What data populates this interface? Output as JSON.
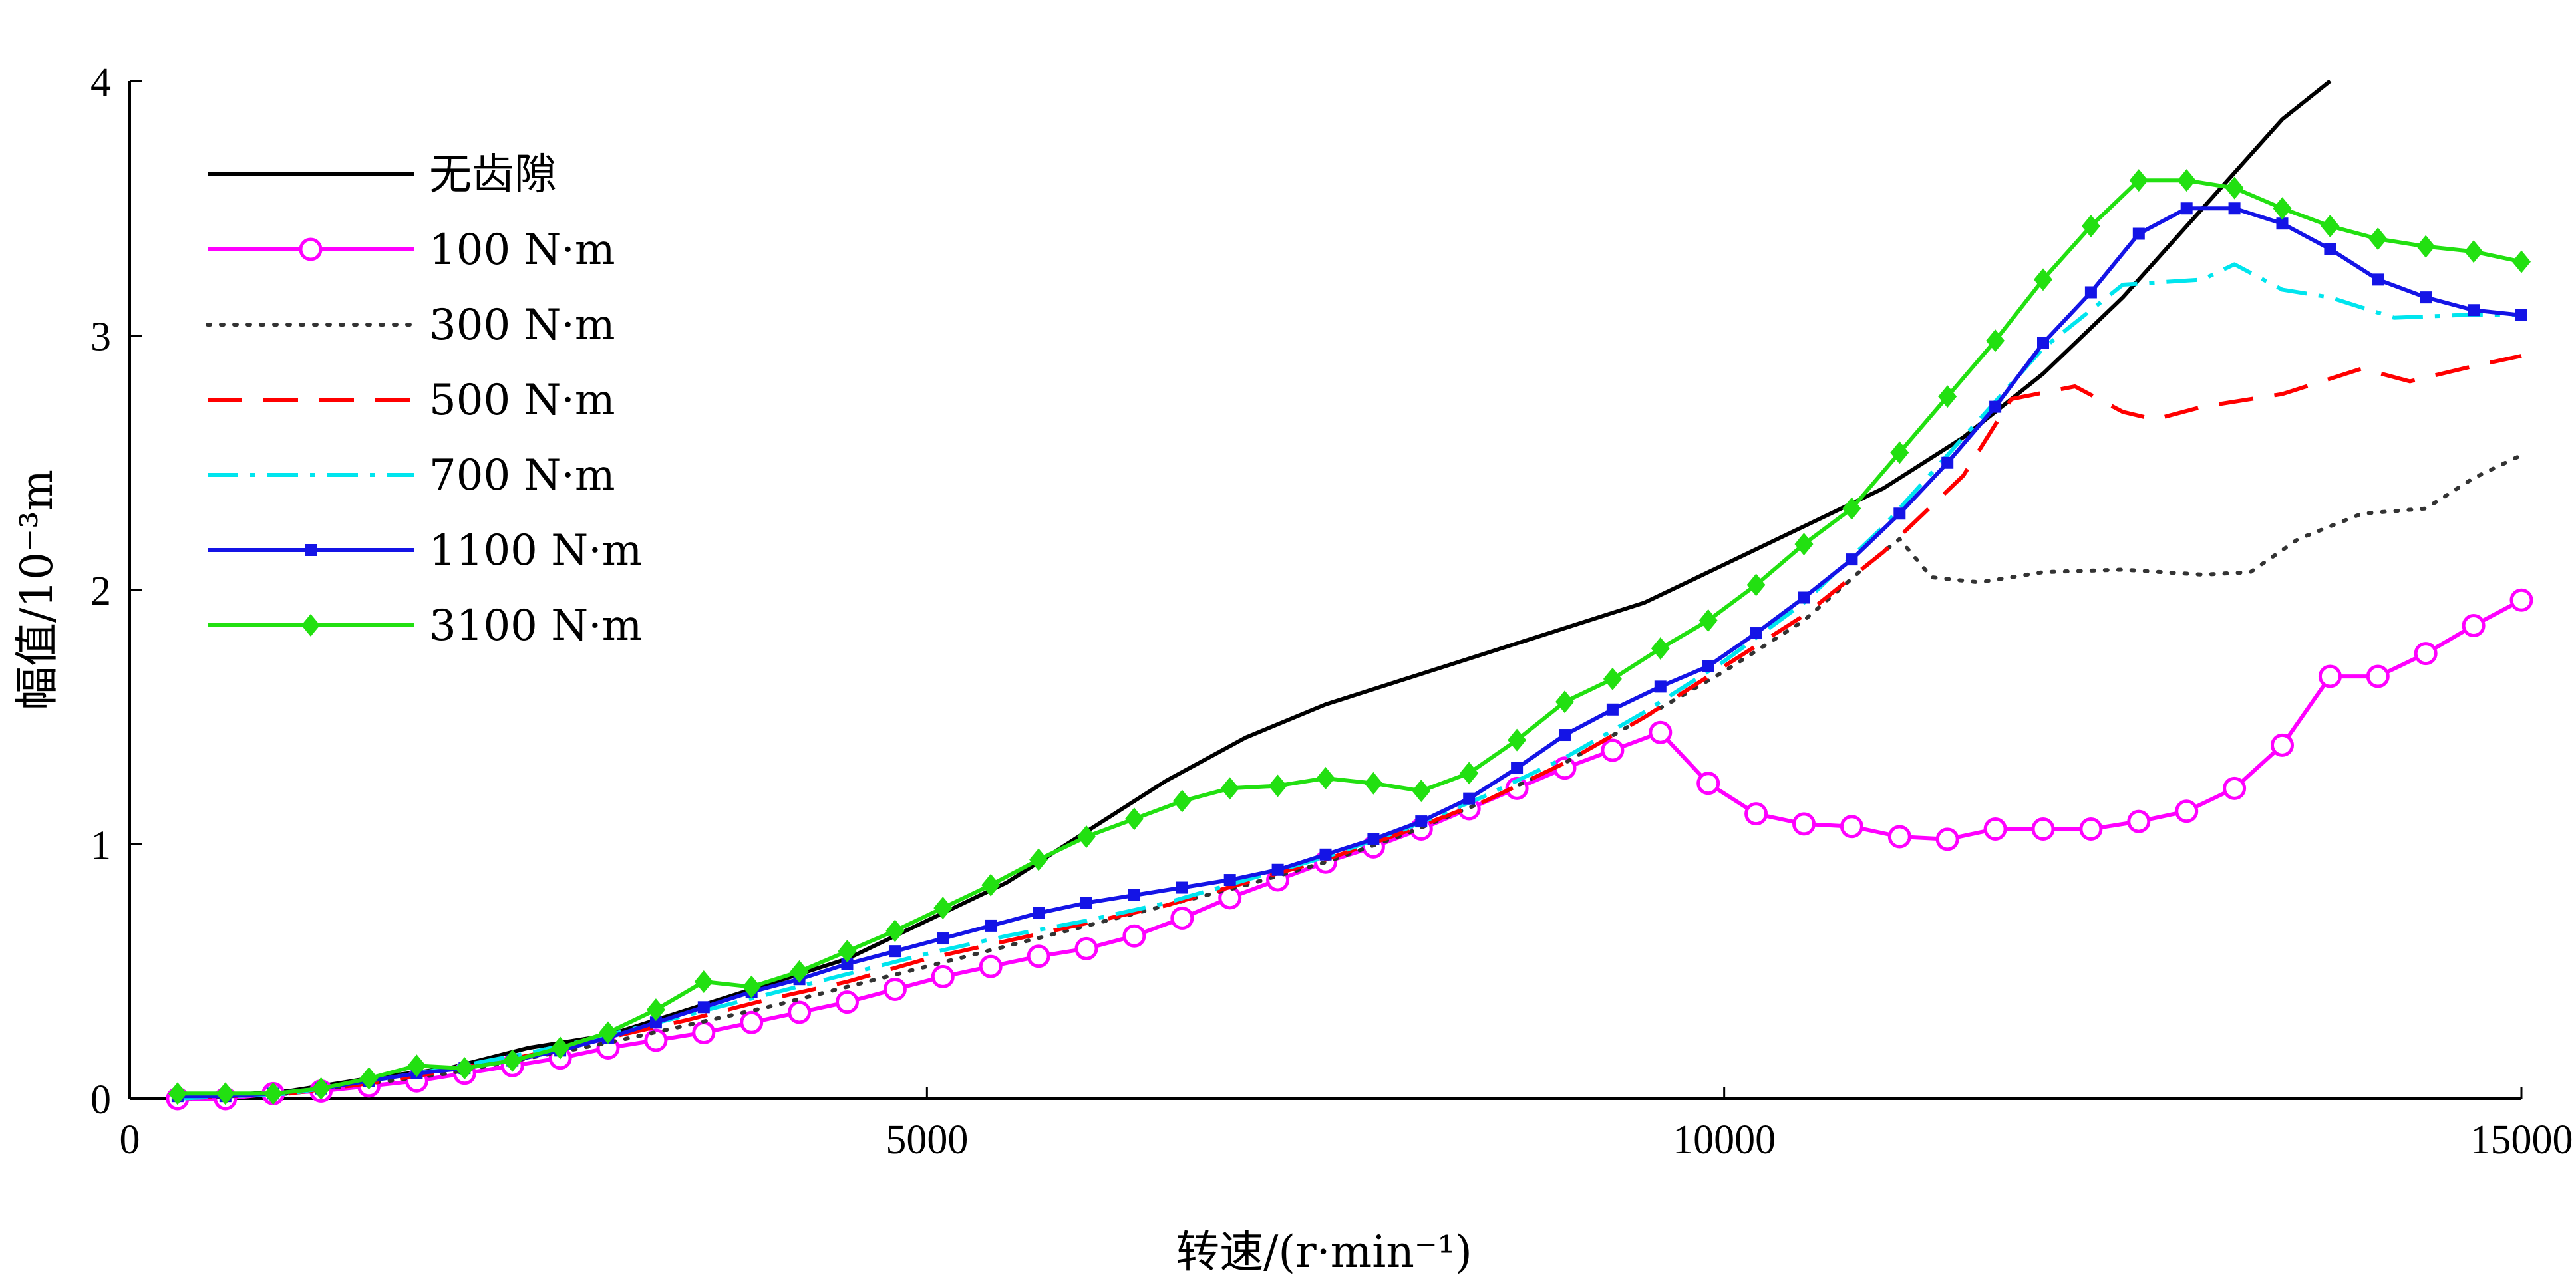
{
  "chart_data": {
    "type": "line",
    "xlabel": "转速/(r·min⁻¹)",
    "ylabel": "幅值/10⁻³m",
    "xlim": [
      0,
      15000
    ],
    "ylim": [
      0,
      4
    ],
    "xticks": [
      {
        "value": 0,
        "label": "0"
      },
      {
        "value": 5000,
        "label": "5000"
      },
      {
        "value": 10000,
        "label": "10000"
      },
      {
        "value": 15000,
        "label": "15000"
      }
    ],
    "yticks": [
      {
        "value": 0,
        "label": "0"
      },
      {
        "value": 1,
        "label": "1"
      },
      {
        "value": 2,
        "label": "2"
      },
      {
        "value": 3,
        "label": "3"
      },
      {
        "value": 4,
        "label": "4"
      }
    ],
    "grid": false,
    "legend_position": "top-left",
    "series": [
      {
        "name": "无齿隙",
        "color": "#000000",
        "dash": "solid",
        "marker": "none",
        "points": [
          [
            300,
            0
          ],
          [
            1000,
            0.03
          ],
          [
            1500,
            0.08
          ],
          [
            2000,
            0.12
          ],
          [
            2500,
            0.2
          ],
          [
            3000,
            0.25
          ],
          [
            3500,
            0.35
          ],
          [
            4000,
            0.45
          ],
          [
            4500,
            0.55
          ],
          [
            5000,
            0.7
          ],
          [
            5500,
            0.85
          ],
          [
            6000,
            1.05
          ],
          [
            6500,
            1.25
          ],
          [
            7000,
            1.42
          ],
          [
            7500,
            1.55
          ],
          [
            8000,
            1.65
          ],
          [
            8500,
            1.75
          ],
          [
            9000,
            1.85
          ],
          [
            9500,
            1.95
          ],
          [
            10000,
            2.1
          ],
          [
            10500,
            2.25
          ],
          [
            11000,
            2.4
          ],
          [
            11500,
            2.6
          ],
          [
            12000,
            2.85
          ],
          [
            12500,
            3.15
          ],
          [
            13000,
            3.5
          ],
          [
            13500,
            3.85
          ],
          [
            13800,
            4.0
          ]
        ]
      },
      {
        "name": "100 N·m",
        "color": "#ff00ff",
        "dash": "solid",
        "marker": "circle-open",
        "points": [
          [
            300,
            0
          ],
          [
            600,
            0
          ],
          [
            900,
            0.02
          ],
          [
            1200,
            0.03
          ],
          [
            1500,
            0.05
          ],
          [
            1800,
            0.07
          ],
          [
            2100,
            0.1
          ],
          [
            2400,
            0.13
          ],
          [
            2700,
            0.16
          ],
          [
            3000,
            0.2
          ],
          [
            3300,
            0.23
          ],
          [
            3600,
            0.26
          ],
          [
            3900,
            0.3
          ],
          [
            4200,
            0.34
          ],
          [
            4500,
            0.38
          ],
          [
            4800,
            0.43
          ],
          [
            5100,
            0.48
          ],
          [
            5400,
            0.52
          ],
          [
            5700,
            0.56
          ],
          [
            6000,
            0.59
          ],
          [
            6300,
            0.64
          ],
          [
            6600,
            0.71
          ],
          [
            6900,
            0.79
          ],
          [
            7200,
            0.86
          ],
          [
            7500,
            0.93
          ],
          [
            7800,
            0.99
          ],
          [
            8100,
            1.06
          ],
          [
            8400,
            1.14
          ],
          [
            8700,
            1.22
          ],
          [
            9000,
            1.3
          ],
          [
            9300,
            1.37
          ],
          [
            9600,
            1.44
          ],
          [
            9900,
            1.24
          ],
          [
            10200,
            1.12
          ],
          [
            10500,
            1.08
          ],
          [
            10800,
            1.07
          ],
          [
            11100,
            1.03
          ],
          [
            11400,
            1.02
          ],
          [
            11700,
            1.06
          ],
          [
            12000,
            1.06
          ],
          [
            12300,
            1.06
          ],
          [
            12600,
            1.09
          ],
          [
            12900,
            1.13
          ],
          [
            13200,
            1.22
          ],
          [
            13500,
            1.39
          ],
          [
            13800,
            1.66
          ],
          [
            14100,
            1.66
          ],
          [
            14400,
            1.75
          ],
          [
            14700,
            1.86
          ],
          [
            15000,
            1.96
          ]
        ]
      },
      {
        "name": "300 N·m",
        "color": "#333333",
        "dash": "dotted",
        "marker": "none",
        "points": [
          [
            300,
            0
          ],
          [
            1000,
            0.02
          ],
          [
            1500,
            0.06
          ],
          [
            2000,
            0.1
          ],
          [
            2500,
            0.16
          ],
          [
            3000,
            0.22
          ],
          [
            3500,
            0.29
          ],
          [
            4000,
            0.36
          ],
          [
            4500,
            0.44
          ],
          [
            5000,
            0.52
          ],
          [
            5500,
            0.6
          ],
          [
            6000,
            0.68
          ],
          [
            6500,
            0.76
          ],
          [
            7000,
            0.84
          ],
          [
            7500,
            0.93
          ],
          [
            8000,
            1.04
          ],
          [
            8500,
            1.17
          ],
          [
            9000,
            1.32
          ],
          [
            9500,
            1.5
          ],
          [
            10000,
            1.68
          ],
          [
            10500,
            1.88
          ],
          [
            10900,
            2.1
          ],
          [
            11100,
            2.2
          ],
          [
            11300,
            2.05
          ],
          [
            11600,
            2.03
          ],
          [
            12000,
            2.07
          ],
          [
            12500,
            2.08
          ],
          [
            13000,
            2.06
          ],
          [
            13300,
            2.07
          ],
          [
            13600,
            2.2
          ],
          [
            14000,
            2.3
          ],
          [
            14400,
            2.32
          ],
          [
            14700,
            2.44
          ],
          [
            15000,
            2.53
          ]
        ]
      },
      {
        "name": "500 N·m",
        "color": "#ff0000",
        "dash": "dashed",
        "marker": "none",
        "points": [
          [
            300,
            0
          ],
          [
            1000,
            0.02
          ],
          [
            1500,
            0.06
          ],
          [
            2000,
            0.11
          ],
          [
            2500,
            0.17
          ],
          [
            3000,
            0.24
          ],
          [
            3500,
            0.31
          ],
          [
            4000,
            0.39
          ],
          [
            4500,
            0.46
          ],
          [
            5000,
            0.55
          ],
          [
            5500,
            0.62
          ],
          [
            6000,
            0.69
          ],
          [
            6500,
            0.76
          ],
          [
            7000,
            0.85
          ],
          [
            7500,
            0.94
          ],
          [
            8000,
            1.05
          ],
          [
            8500,
            1.17
          ],
          [
            9000,
            1.32
          ],
          [
            9500,
            1.5
          ],
          [
            10000,
            1.7
          ],
          [
            10500,
            1.9
          ],
          [
            11000,
            2.15
          ],
          [
            11500,
            2.45
          ],
          [
            11800,
            2.75
          ],
          [
            12200,
            2.8
          ],
          [
            12500,
            2.7
          ],
          [
            12700,
            2.67
          ],
          [
            13000,
            2.72
          ],
          [
            13500,
            2.77
          ],
          [
            14000,
            2.87
          ],
          [
            14300,
            2.82
          ],
          [
            14700,
            2.88
          ],
          [
            15000,
            2.92
          ]
        ]
      },
      {
        "name": "700 N·m",
        "color": "#00e5ee",
        "dash": "dashdot",
        "marker": "none",
        "points": [
          [
            300,
            0
          ],
          [
            1000,
            0.02
          ],
          [
            1500,
            0.07
          ],
          [
            2000,
            0.12
          ],
          [
            2500,
            0.18
          ],
          [
            3000,
            0.25
          ],
          [
            3500,
            0.33
          ],
          [
            4000,
            0.41
          ],
          [
            4500,
            0.49
          ],
          [
            5000,
            0.57
          ],
          [
            5500,
            0.64
          ],
          [
            6000,
            0.7
          ],
          [
            6500,
            0.77
          ],
          [
            7000,
            0.86
          ],
          [
            7500,
            0.95
          ],
          [
            8000,
            1.06
          ],
          [
            8500,
            1.19
          ],
          [
            9000,
            1.34
          ],
          [
            9500,
            1.52
          ],
          [
            10000,
            1.72
          ],
          [
            10500,
            1.95
          ],
          [
            11000,
            2.25
          ],
          [
            11500,
            2.6
          ],
          [
            12000,
            2.95
          ],
          [
            12500,
            3.2
          ],
          [
            13000,
            3.22
          ],
          [
            13200,
            3.28
          ],
          [
            13500,
            3.18
          ],
          [
            13800,
            3.15
          ],
          [
            14200,
            3.07
          ],
          [
            14600,
            3.08
          ],
          [
            15000,
            3.08
          ]
        ]
      },
      {
        "name": "1100 N·m",
        "color": "#1414e6",
        "dash": "solid",
        "marker": "square-filled",
        "points": [
          [
            300,
            0.01
          ],
          [
            600,
            0.01
          ],
          [
            900,
            0.02
          ],
          [
            1200,
            0.04
          ],
          [
            1500,
            0.07
          ],
          [
            1800,
            0.1
          ],
          [
            2100,
            0.12
          ],
          [
            2400,
            0.15
          ],
          [
            2700,
            0.19
          ],
          [
            3000,
            0.24
          ],
          [
            3300,
            0.3
          ],
          [
            3600,
            0.36
          ],
          [
            3900,
            0.42
          ],
          [
            4200,
            0.47
          ],
          [
            4500,
            0.53
          ],
          [
            4800,
            0.58
          ],
          [
            5100,
            0.63
          ],
          [
            5400,
            0.68
          ],
          [
            5700,
            0.73
          ],
          [
            6000,
            0.77
          ],
          [
            6300,
            0.8
          ],
          [
            6600,
            0.83
          ],
          [
            6900,
            0.86
          ],
          [
            7200,
            0.9
          ],
          [
            7500,
            0.96
          ],
          [
            7800,
            1.02
          ],
          [
            8100,
            1.09
          ],
          [
            8400,
            1.18
          ],
          [
            8700,
            1.3
          ],
          [
            9000,
            1.43
          ],
          [
            9300,
            1.53
          ],
          [
            9600,
            1.62
          ],
          [
            9900,
            1.7
          ],
          [
            10200,
            1.83
          ],
          [
            10500,
            1.97
          ],
          [
            10800,
            2.12
          ],
          [
            11100,
            2.3
          ],
          [
            11400,
            2.5
          ],
          [
            11700,
            2.72
          ],
          [
            12000,
            2.97
          ],
          [
            12300,
            3.17
          ],
          [
            12600,
            3.4
          ],
          [
            12900,
            3.5
          ],
          [
            13200,
            3.5
          ],
          [
            13500,
            3.44
          ],
          [
            13800,
            3.34
          ],
          [
            14100,
            3.22
          ],
          [
            14400,
            3.15
          ],
          [
            14700,
            3.1
          ],
          [
            15000,
            3.08
          ]
        ]
      },
      {
        "name": "3100 N·m",
        "color": "#22e011",
        "dash": "solid",
        "marker": "diamond-filled",
        "points": [
          [
            300,
            0.02
          ],
          [
            600,
            0.02
          ],
          [
            900,
            0.02
          ],
          [
            1200,
            0.04
          ],
          [
            1500,
            0.08
          ],
          [
            1800,
            0.13
          ],
          [
            2100,
            0.12
          ],
          [
            2400,
            0.15
          ],
          [
            2700,
            0.2
          ],
          [
            3000,
            0.26
          ],
          [
            3300,
            0.35
          ],
          [
            3600,
            0.46
          ],
          [
            3900,
            0.44
          ],
          [
            4200,
            0.5
          ],
          [
            4500,
            0.58
          ],
          [
            4800,
            0.66
          ],
          [
            5100,
            0.75
          ],
          [
            5400,
            0.84
          ],
          [
            5700,
            0.94
          ],
          [
            6000,
            1.03
          ],
          [
            6300,
            1.1
          ],
          [
            6600,
            1.17
          ],
          [
            6900,
            1.22
          ],
          [
            7200,
            1.23
          ],
          [
            7500,
            1.26
          ],
          [
            7800,
            1.24
          ],
          [
            8100,
            1.21
          ],
          [
            8400,
            1.28
          ],
          [
            8700,
            1.41
          ],
          [
            9000,
            1.56
          ],
          [
            9300,
            1.65
          ],
          [
            9600,
            1.77
          ],
          [
            9900,
            1.88
          ],
          [
            10200,
            2.02
          ],
          [
            10500,
            2.18
          ],
          [
            10800,
            2.32
          ],
          [
            11100,
            2.54
          ],
          [
            11400,
            2.76
          ],
          [
            11700,
            2.98
          ],
          [
            12000,
            3.22
          ],
          [
            12300,
            3.43
          ],
          [
            12600,
            3.61
          ],
          [
            12900,
            3.61
          ],
          [
            13200,
            3.58
          ],
          [
            13500,
            3.5
          ],
          [
            13800,
            3.43
          ],
          [
            14100,
            3.38
          ],
          [
            14400,
            3.35
          ],
          [
            14700,
            3.33
          ],
          [
            15000,
            3.29
          ]
        ]
      }
    ]
  }
}
